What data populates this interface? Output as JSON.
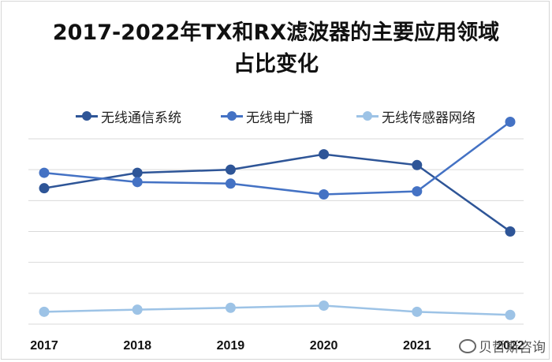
{
  "chart_data": {
    "type": "line",
    "title_line1": "2017-2022年TX和RX滤波器的主要应用领域",
    "title_line2": "占比变化",
    "xlabel": "",
    "ylabel": "",
    "categories": [
      "2017",
      "2018",
      "2019",
      "2020",
      "2021",
      "2022"
    ],
    "ylim": [
      0,
      60
    ],
    "grid": true,
    "legend_position": "top",
    "y_axis_labels_visible": false,
    "series": [
      {
        "name": "无线通信系统",
        "values": [
          44,
          49,
          50,
          55,
          51.5,
          30
        ],
        "color": "#2e5597"
      },
      {
        "name": "无线电广播",
        "values": [
          49,
          46,
          45.5,
          42,
          43,
          65.5
        ],
        "color": "#4472c4"
      },
      {
        "name": "无线传感器网络",
        "values": [
          4,
          4.7,
          5.3,
          6,
          4,
          3
        ],
        "color": "#9dc3e6"
      }
    ]
  },
  "watermark": {
    "text": "贝哲斯咨询",
    "icon": "weibo-icon"
  }
}
